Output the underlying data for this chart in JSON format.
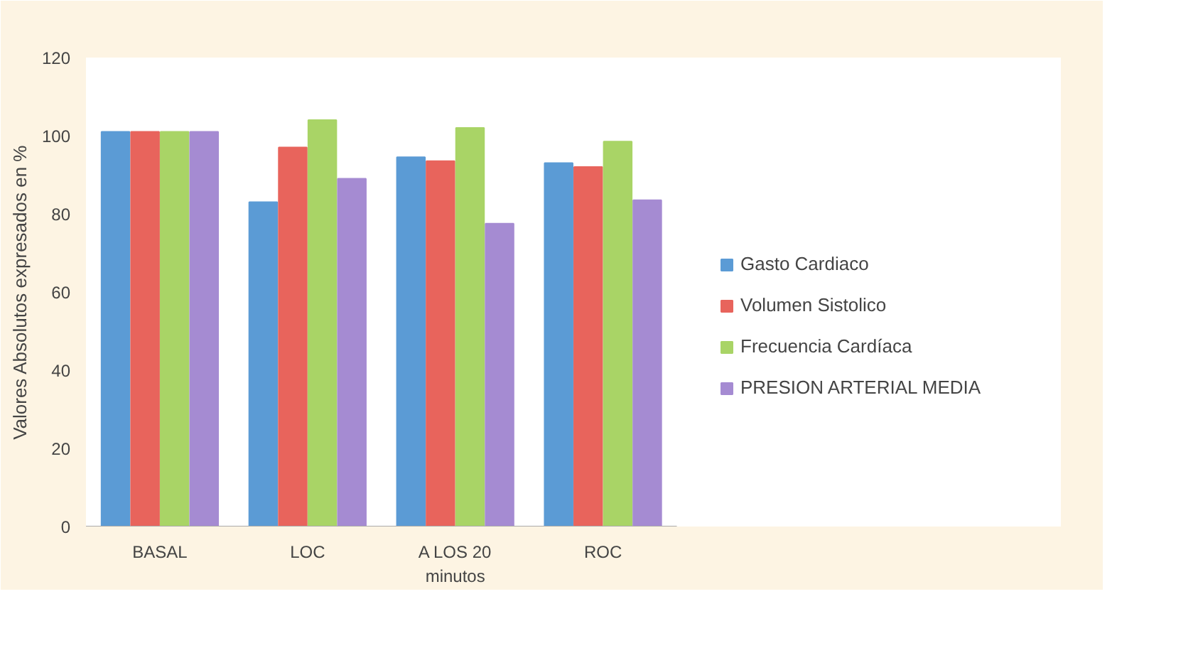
{
  "chart_data": {
    "type": "bar",
    "ylabel": "Valores Absolutos expresados en %",
    "categories": [
      "BASAL",
      "LOC",
      "A LOS 20\nminutos",
      "ROC"
    ],
    "series": [
      {
        "name": "Gasto Cardiaco",
        "color": "#5b9bd5",
        "values": [
          101,
          83,
          94.5,
          93
        ]
      },
      {
        "name": "Volumen Sistolico",
        "color": "#e8645c",
        "values": [
          101,
          97,
          93.5,
          92
        ]
      },
      {
        "name": "Frecuencia Cardíaca",
        "color": "#a9d466",
        "values": [
          101,
          104,
          102,
          98.5
        ]
      },
      {
        "name": "PRESION ARTERIAL MEDIA",
        "color": "#a58bd2",
        "values": [
          101,
          89,
          77.5,
          83.5
        ]
      }
    ],
    "ylim": [
      0,
      120
    ],
    "yticks": [
      0,
      20,
      40,
      60,
      80,
      100,
      120
    ],
    "grid": false,
    "legend": "right"
  }
}
